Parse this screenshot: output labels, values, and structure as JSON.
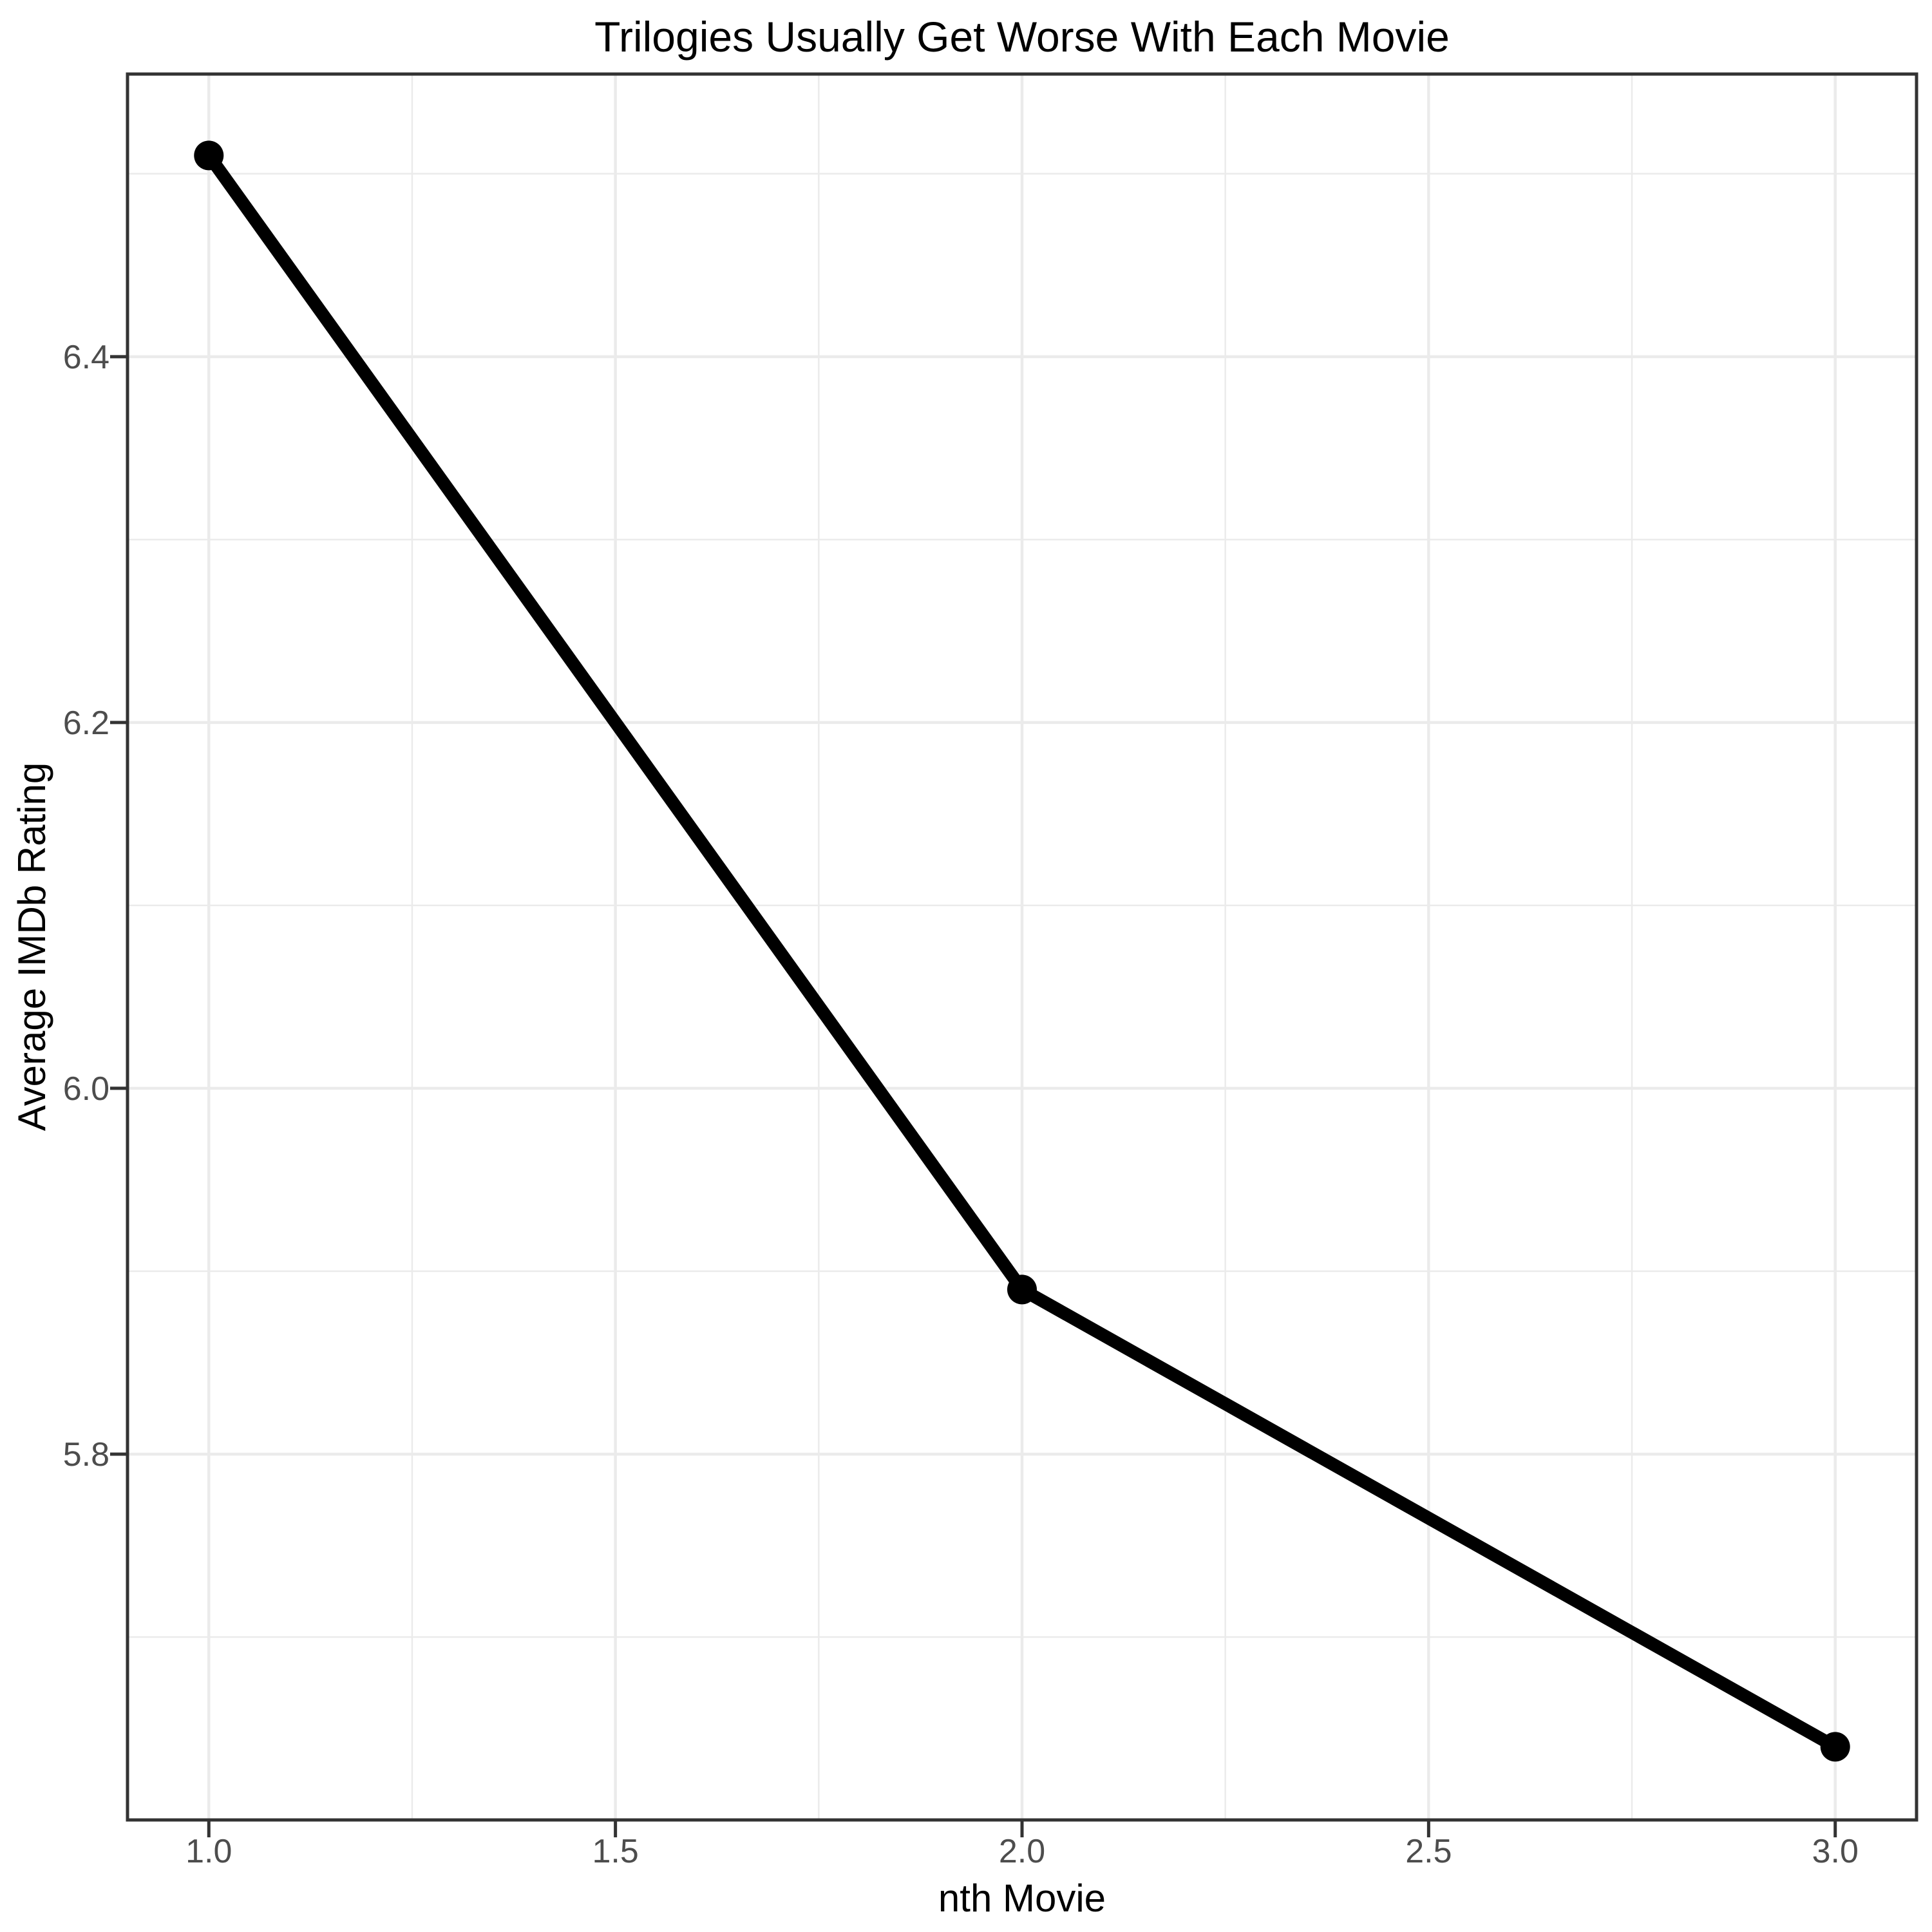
{
  "chart_data": {
    "type": "line",
    "title": "Trilogies Usually Get Worse With Each Movie",
    "xlabel": "nth Movie",
    "ylabel": "Average IMDb Rating",
    "series": [
      {
        "name": "Average IMDb Rating",
        "x": [
          1.0,
          2.0,
          3.0
        ],
        "y": [
          6.51,
          5.89,
          5.64
        ]
      }
    ],
    "xlim": [
      0.9,
      3.1
    ],
    "ylim": [
      5.6,
      6.5545
    ],
    "xticks": {
      "major": [
        1.0,
        1.5,
        2.0,
        2.5,
        3.0
      ],
      "labels": [
        "1.0",
        "1.5",
        "2.0",
        "2.5",
        "3.0"
      ],
      "minor": [
        1.25,
        1.75,
        2.25,
        2.75
      ]
    },
    "yticks": {
      "major": [
        5.8,
        6.0,
        6.2,
        6.4
      ],
      "labels": [
        "5.8",
        "6.0",
        "6.2",
        "6.4"
      ],
      "minor": [
        5.7,
        5.9,
        6.1,
        6.3,
        6.5
      ]
    },
    "grid": "major and minor, on",
    "legend_position": "none",
    "styles": {
      "line_color": "#000000",
      "point_color": "#000000",
      "background_color": "#ffffff",
      "panel_border_color": "#333333",
      "major_grid_color": "#ebebeb",
      "minor_grid_color": "#ebebeb",
      "tick_mark_color": "#333333",
      "tick_label_color": "#4d4d4d",
      "title_color": "#000000",
      "axis_title_color": "#000000"
    }
  }
}
